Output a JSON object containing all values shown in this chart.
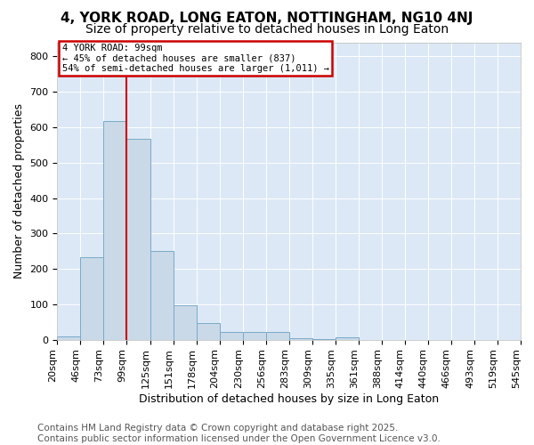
{
  "title": "4, YORK ROAD, LONG EATON, NOTTINGHAM, NG10 4NJ",
  "subtitle": "Size of property relative to detached houses in Long Eaton",
  "xlabel": "Distribution of detached houses by size in Long Eaton",
  "ylabel": "Number of detached properties",
  "bar_values": [
    10,
    232,
    617,
    567,
    250,
    98,
    47,
    22,
    22,
    22,
    5,
    3,
    7,
    0,
    0,
    0,
    0,
    0,
    0,
    0
  ],
  "bar_labels": [
    "20sqm",
    "46sqm",
    "73sqm",
    "99sqm",
    "125sqm",
    "151sqm",
    "178sqm",
    "204sqm",
    "230sqm",
    "256sqm",
    "283sqm",
    "309sqm",
    "335sqm",
    "361sqm",
    "388sqm",
    "414sqm",
    "440sqm",
    "466sqm",
    "493sqm",
    "519sqm",
    "545sqm"
  ],
  "bar_color": "#c9d9e8",
  "bar_edge_color": "#7aaac8",
  "vline_color": "#cc0000",
  "vline_position": 3,
  "annotation_text": "4 YORK ROAD: 99sqm\n← 45% of detached houses are smaller (837)\n54% of semi-detached houses are larger (1,011) →",
  "annotation_box_color": "#cc0000",
  "ylim": [
    0,
    840
  ],
  "yticks": [
    0,
    100,
    200,
    300,
    400,
    500,
    600,
    700,
    800
  ],
  "plot_bg_color": "#dce8f5",
  "fig_bg_color": "#ffffff",
  "footer_text": "Contains HM Land Registry data © Crown copyright and database right 2025.\nContains public sector information licensed under the Open Government Licence v3.0.",
  "title_fontsize": 11,
  "subtitle_fontsize": 10,
  "xlabel_fontsize": 9,
  "ylabel_fontsize": 9,
  "tick_fontsize": 8,
  "footer_fontsize": 7.5
}
